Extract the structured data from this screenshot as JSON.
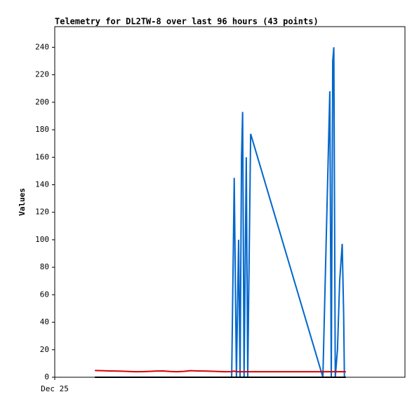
{
  "chart_data": {
    "type": "line",
    "title": "Telemetry for DL2TW-8 over last 96 hours (43 points)",
    "y_label": "Values",
    "x": [
      11.0,
      12.9,
      14.8,
      16.6,
      18.5,
      20.4,
      22.2,
      24.1,
      26.0,
      27.8,
      29.7,
      31.6,
      33.5,
      35.3,
      37.2,
      39.1,
      41.0,
      42.8,
      44.7,
      46.6,
      48.5,
      49.2,
      49.8,
      50.4,
      50.8,
      51.2,
      51.5,
      51.9,
      52.5,
      52.9,
      53.7,
      73.5,
      75.4,
      75.8,
      76.2,
      76.5,
      76.9,
      77.5,
      78.1,
      78.8,
      79.2,
      79.4,
      79.8
    ],
    "series": [
      {
        "color": "#0066cc",
        "values": [
          0,
          0,
          0,
          0,
          0,
          0,
          0,
          0,
          0,
          0,
          0,
          0,
          0,
          0,
          0,
          0,
          0,
          0,
          0,
          0,
          0,
          145,
          0,
          100,
          0,
          160,
          193,
          0,
          160,
          0,
          177,
          0,
          208,
          0,
          230,
          240,
          0,
          20,
          70,
          97,
          45,
          0,
          0
        ]
      },
      {
        "color": "#000000",
        "values": [
          0,
          0,
          0,
          0,
          0,
          0,
          0,
          0,
          0,
          0,
          0,
          0,
          0,
          0,
          0,
          0,
          0,
          0,
          0,
          0,
          0,
          0,
          0,
          0,
          0,
          0,
          0,
          0,
          0,
          0,
          0,
          0,
          0,
          0,
          0,
          0,
          0,
          0,
          0,
          0,
          0,
          0,
          0
        ]
      },
      {
        "color": "#dd0000",
        "values": [
          4.9,
          4.8,
          4.6,
          4.5,
          4.4,
          4.2,
          4.0,
          4.1,
          4.3,
          4.5,
          4.6,
          4.2,
          4.0,
          4.3,
          4.8,
          4.6,
          4.5,
          4.4,
          4.2,
          4.0,
          4.1,
          4.5,
          4.0,
          4.0,
          4.0,
          4.0,
          4.0,
          4.0,
          4.0,
          4.0,
          4.0,
          4.0,
          4.0,
          4.0,
          4.0,
          4.0,
          4.0,
          4.0,
          4.0,
          4.0,
          4.0,
          4.0,
          4.0
        ]
      }
    ],
    "xlim": [
      0,
      96
    ],
    "xticks": [
      {
        "value": 0,
        "label": "Dec 25"
      }
    ],
    "ylim": [
      0,
      255
    ],
    "yticks": [
      0,
      20,
      40,
      60,
      80,
      100,
      120,
      140,
      160,
      180,
      200,
      220,
      240
    ]
  }
}
